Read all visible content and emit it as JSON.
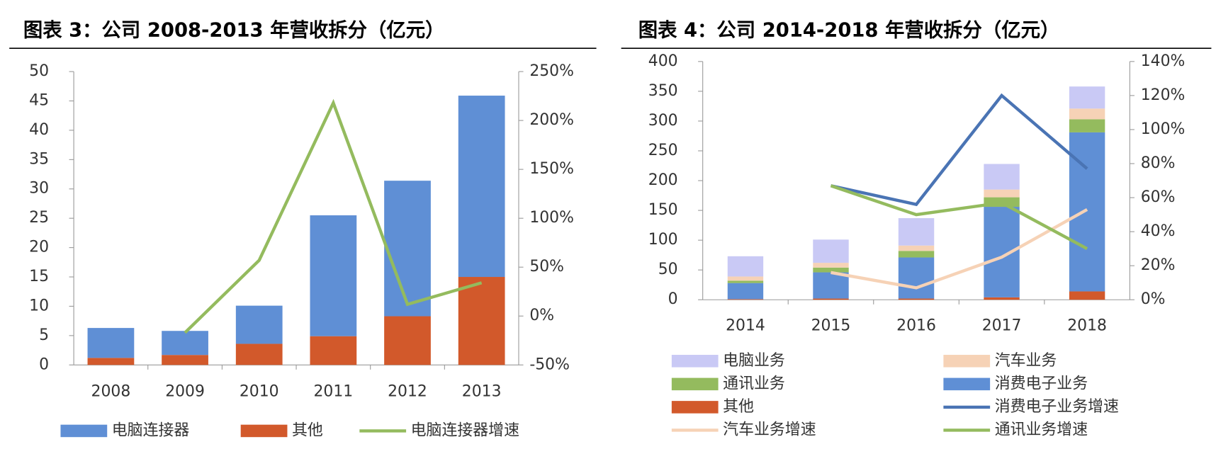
{
  "chart_data": [
    {
      "type": "bar",
      "stacked": true,
      "title": "图表 3：公司 2008-2013 年营收拆分（亿元）",
      "categories": [
        "2008",
        "2009",
        "2010",
        "2011",
        "2012",
        "2013"
      ],
      "series": [
        {
          "name": "电脑连接器",
          "color": "#5f8fd5",
          "values": [
            5.1,
            4.1,
            6.5,
            20.6,
            23.1,
            30.9
          ]
        },
        {
          "name": "其他",
          "color": "#d2592b",
          "values": [
            1.2,
            1.7,
            3.6,
            4.9,
            8.3,
            15
          ]
        },
        {
          "name": "电脑连接器增速",
          "color": "#94bb5e",
          "axis": "y2",
          "values": [
            null,
            -17,
            57,
            218,
            12,
            34
          ]
        }
      ],
      "ylim": [
        0,
        50
      ],
      "yticks": [
        0,
        5,
        10,
        15,
        20,
        25,
        30,
        35,
        40,
        45,
        50
      ],
      "y2lim": [
        -50,
        250
      ],
      "y2ticks": [
        {
          "value": -50,
          "label": "-50%"
        },
        {
          "value": 0,
          "label": "0%"
        },
        {
          "value": 50,
          "label": "50%"
        },
        {
          "value": 100,
          "label": "100%"
        },
        {
          "value": 150,
          "label": "150%"
        },
        {
          "value": 200,
          "label": "200%"
        },
        {
          "value": 250,
          "label": "250%"
        }
      ],
      "legend": "bottom"
    },
    {
      "type": "bar",
      "stacked": true,
      "title": "图表 4：公司 2014-2018 年营收拆分（亿元）",
      "categories": [
        "2014",
        "2015",
        "2016",
        "2017",
        "2018"
      ],
      "series": [
        {
          "name": "电脑业务",
          "color": "#c9c9f5",
          "values": [
            34,
            39,
            46,
            43,
            37
          ]
        },
        {
          "name": "汽车业务",
          "color": "#f6d2b6",
          "values": [
            7,
            8,
            9,
            13,
            18
          ]
        },
        {
          "name": "通讯业务",
          "color": "#94bb5e",
          "values": [
            4,
            8,
            11,
            16,
            22
          ]
        },
        {
          "name": "消费电子业务",
          "color": "#5f8fd5",
          "values": [
            27,
            44,
            69,
            152,
            267
          ]
        },
        {
          "name": "其他",
          "color": "#d2592b",
          "values": [
            1,
            2,
            2,
            4,
            14
          ]
        },
        {
          "name": "消费电子业务增速",
          "color": "#4a74b4",
          "axis": "y2",
          "values": [
            null,
            67,
            56,
            120,
            77
          ]
        },
        {
          "name": "汽车业务增速",
          "color": "#f6d2b6",
          "axis": "y2",
          "values": [
            null,
            16,
            7,
            25,
            53
          ]
        },
        {
          "name": "通讯业务增速",
          "color": "#94bb5e",
          "axis": "y2",
          "values": [
            null,
            67,
            50,
            57,
            30
          ]
        }
      ],
      "ylim": [
        0,
        400
      ],
      "yticks": [
        0,
        50,
        100,
        150,
        200,
        250,
        300,
        350,
        400
      ],
      "y2lim": [
        0,
        140
      ],
      "y2ticks": [
        {
          "value": 0,
          "label": "0%"
        },
        {
          "value": 20,
          "label": "20%"
        },
        {
          "value": 40,
          "label": "40%"
        },
        {
          "value": 60,
          "label": "60%"
        },
        {
          "value": 80,
          "label": "80%"
        },
        {
          "value": 100,
          "label": "100%"
        },
        {
          "value": 120,
          "label": "120%"
        },
        {
          "value": 140,
          "label": "140%"
        }
      ],
      "legend": "bottom"
    }
  ]
}
